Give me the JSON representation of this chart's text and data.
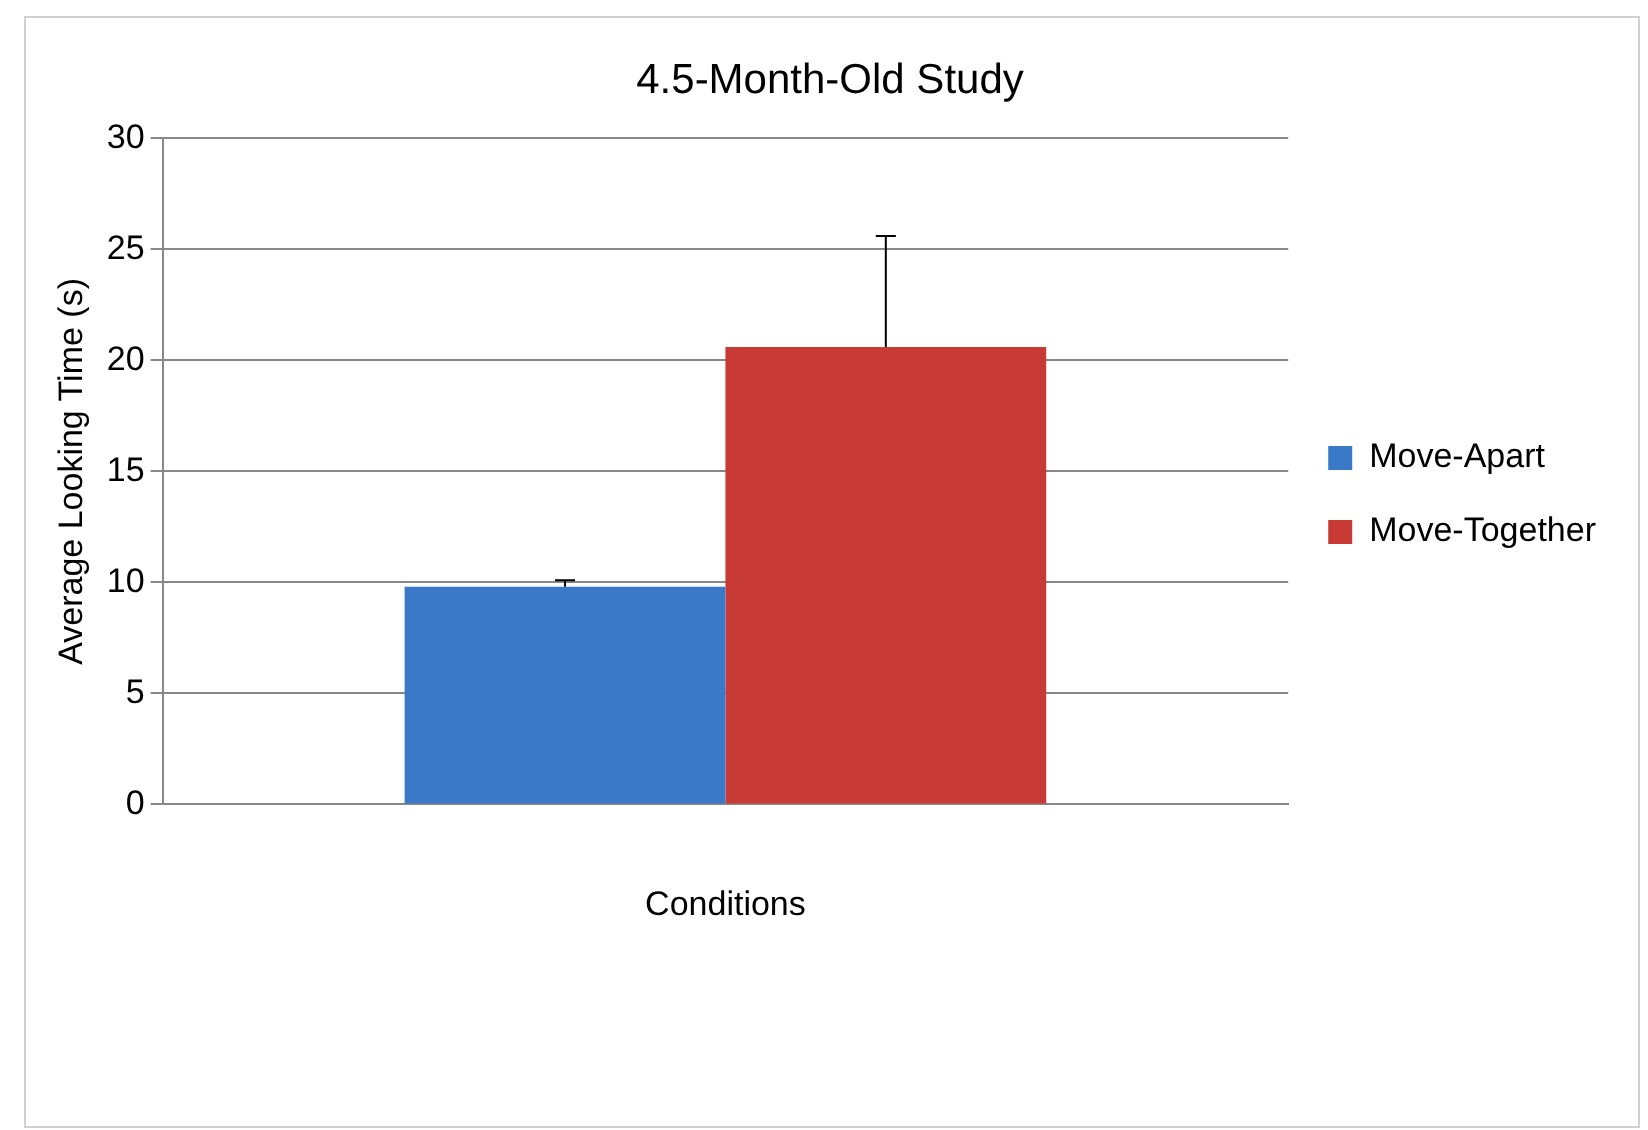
{
  "chart_data": {
    "type": "bar",
    "title": "4.5-Month-Old Study",
    "xlabel": "Conditions",
    "ylabel": "Average Looking Time (s)",
    "categories": [
      null
    ],
    "series": [
      {
        "name": "Move-Apart",
        "color": "#3a78c8",
        "values": [
          9.8
        ],
        "errors": [
          [
            9.8,
            10.1
          ]
        ]
      },
      {
        "name": "Move-Together",
        "color": "#c83a36",
        "values": [
          20.6
        ],
        "errors": [
          [
            20.6,
            25.6
          ]
        ]
      }
    ],
    "ylim": [
      0,
      30
    ],
    "yticks": [
      0,
      5,
      10,
      15,
      20,
      25,
      30
    ],
    "grid": "y",
    "legend": "right"
  }
}
